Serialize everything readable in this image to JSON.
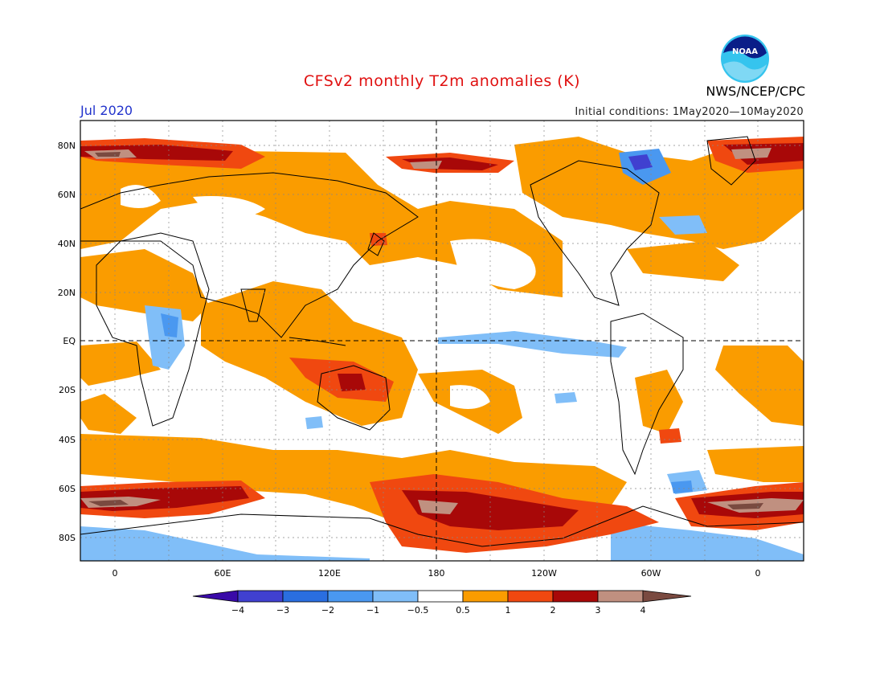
{
  "header": {
    "title": "CFSv2 monthly T2m anomalies (K)",
    "month": "Jul 2020",
    "initial_conditions": "Initial conditions: 1May2020—10May2020",
    "agency": "NWS/NCEP/CPC",
    "logo_text": "NOAA"
  },
  "map": {
    "lat_labels": [
      "80N",
      "60N",
      "40N",
      "20N",
      "EQ",
      "20S",
      "40S",
      "60S",
      "80S"
    ],
    "lon_labels": [
      "0",
      "60E",
      "120E",
      "180",
      "120W",
      "60W",
      "0"
    ]
  },
  "colorbar": {
    "labels": [
      "−4",
      "−3",
      "−2",
      "−1",
      "−0.5",
      "0.5",
      "1",
      "2",
      "3",
      "4"
    ],
    "colors": [
      "#3a0aa8",
      "#4040d0",
      "#2a6ee0",
      "#4a98f0",
      "#80bef8",
      "#ffffff",
      "#fa9c00",
      "#f04810",
      "#a80808",
      "#c09080",
      "#7a4a40"
    ]
  },
  "colors": {
    "land_outline": "#000000",
    "ocean": "#ffffff",
    "grid": "#888888"
  }
}
